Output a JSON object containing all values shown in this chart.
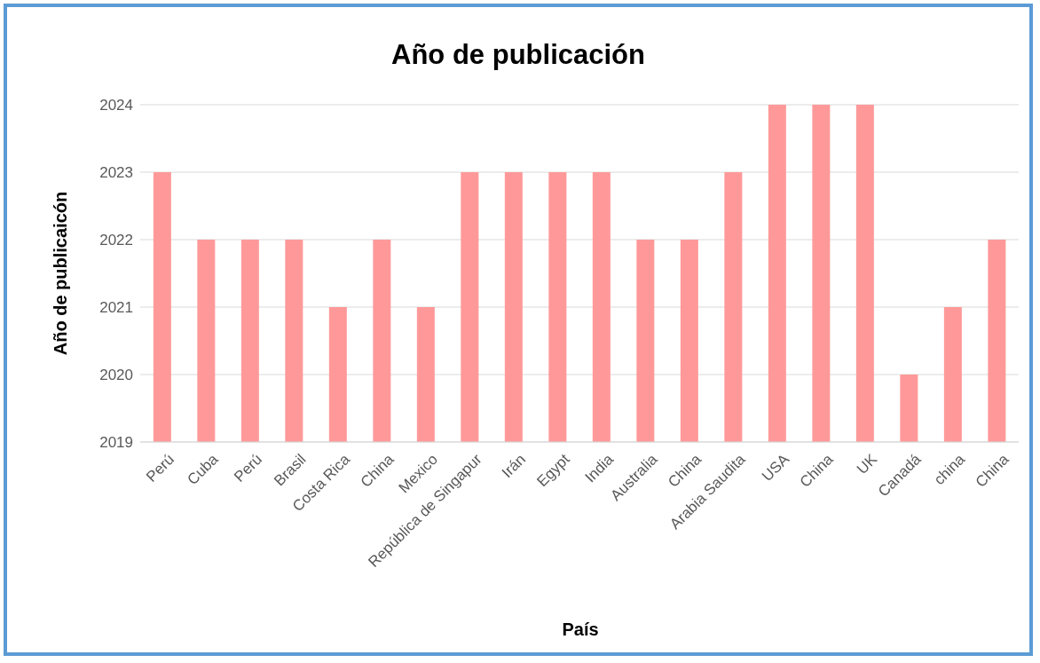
{
  "chart_data": {
    "type": "bar",
    "title": "Año de publicación",
    "xlabel": "País",
    "ylabel": "Año de publicaicón",
    "categories": [
      "Perú",
      "Cuba",
      "Perú",
      "Brasil",
      "Costa Rica",
      "China",
      "Mexico",
      "República de Singapur",
      "Irán",
      "Egypt",
      "India",
      "Australia",
      "China",
      "Arabia Saudita",
      "USA",
      "China",
      "UK",
      "Canadá",
      "china",
      "China"
    ],
    "values": [
      2023,
      2022,
      2022,
      2022,
      2021,
      2022,
      2021,
      2023,
      2023,
      2023,
      2023,
      2022,
      2022,
      2023,
      2024,
      2024,
      2024,
      2020,
      2021,
      2022
    ],
    "color": "#ff9999",
    "ylim": [
      2019,
      2024
    ],
    "yticks": [
      2019,
      2020,
      2021,
      2022,
      2023,
      2024
    ],
    "grid": "y",
    "legend": false
  }
}
